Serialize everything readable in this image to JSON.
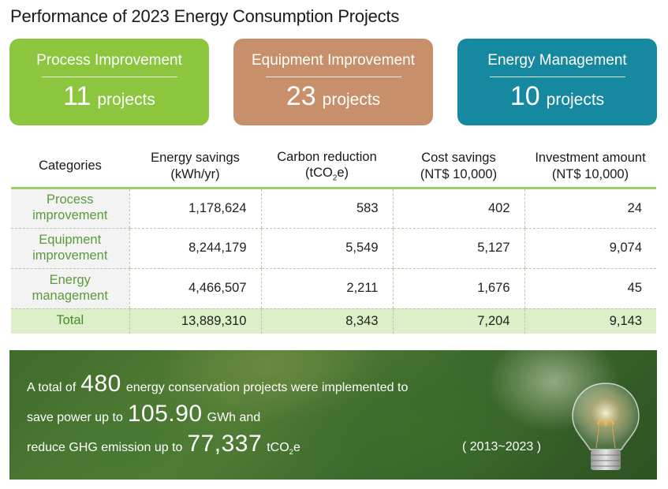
{
  "title": "Performance of 2023 Energy Consumption Projects",
  "cards": [
    {
      "title": "Process Improvement",
      "count": "11",
      "unit": "projects",
      "color": "#8cc63f"
    },
    {
      "title": "Equipment Improvement",
      "count": "23",
      "unit": "projects",
      "color": "#c8906a"
    },
    {
      "title": "Energy Management",
      "count": "10",
      "unit": "projects",
      "color": "#16889f"
    }
  ],
  "table": {
    "headers": {
      "categories": "Categories",
      "energy_savings": "Energy savings",
      "energy_savings_unit": "(kWh/yr)",
      "carbon_reduction": "Carbon reduction",
      "carbon_unit_pre": "(tCO",
      "carbon_unit_sub": "2",
      "carbon_unit_post": "e)",
      "cost_savings": "Cost savings",
      "cost_unit": "(NT$ 10,000)",
      "investment": "Investment amount",
      "investment_unit": "(NT$ 10,000)"
    },
    "rows": [
      {
        "cat_l1": "Process",
        "cat_l2": "improvement",
        "energy": "1,178,624",
        "carbon": "583",
        "cost": "402",
        "invest": "24"
      },
      {
        "cat_l1": "Equipment",
        "cat_l2": "improvement",
        "energy": "8,244,179",
        "carbon": "5,549",
        "cost": "5,127",
        "invest": "9,074"
      },
      {
        "cat_l1": "Energy",
        "cat_l2": "management",
        "energy": "4,466,507",
        "carbon": "2,211",
        "cost": "1,676",
        "invest": "45"
      }
    ],
    "total": {
      "label": "Total",
      "energy": "13,889,310",
      "carbon": "8,343",
      "cost": "7,204",
      "invest": "9,143"
    }
  },
  "banner": {
    "line1_pre": "A total of",
    "line1_num": "480",
    "line1_post": "energy conservation projects were implemented to",
    "line2_pre": "save power up to",
    "line2_num": "105.90",
    "line2_post": "GWh and",
    "line3_pre": "reduce GHG emission up to",
    "line3_num": "77,337",
    "line3_unit_pre": "tCO",
    "line3_unit_sub": "2",
    "line3_unit_post": "e",
    "period": "( 2013~2023 )"
  }
}
